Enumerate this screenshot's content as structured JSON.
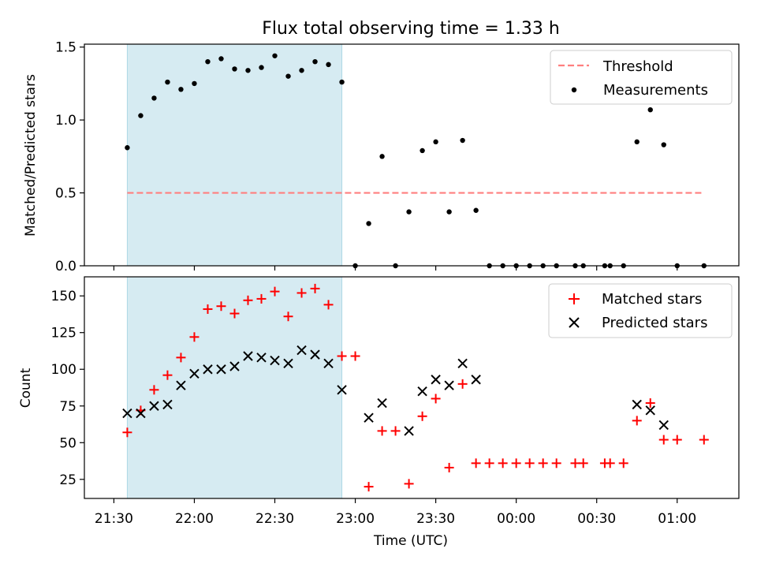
{
  "chart_data": [
    {
      "type": "scatter",
      "title": "Flux total observing time = 1.33 h",
      "xlabel": "",
      "ylabel": "Matched/Predicted stars",
      "ylim": [
        0,
        1.52
      ],
      "yticks": [
        0,
        0.5,
        1.0,
        1.5
      ],
      "ytick_labels": [
        "0.0",
        "0.5",
        "1.0",
        "1.5"
      ],
      "xlim": [
        "21:19",
        "01:23"
      ],
      "shaded_span": {
        "x_start": "21:35",
        "x_end": "22:55",
        "color": "#add8e6"
      },
      "threshold": {
        "name": "Threshold",
        "y": 0.5,
        "x_start": "21:35",
        "x_end": "01:10",
        "color": "#ff7f7f"
      },
      "legend_placement": "top-right",
      "series": [
        {
          "name": "Measurements",
          "color": "#000000",
          "marker": "dot",
          "points": [
            [
              "21:35",
              0.81
            ],
            [
              "21:40",
              1.03
            ],
            [
              "21:45",
              1.15
            ],
            [
              "21:50",
              1.26
            ],
            [
              "21:55",
              1.21
            ],
            [
              "22:00",
              1.25
            ],
            [
              "22:05",
              1.4
            ],
            [
              "22:10",
              1.42
            ],
            [
              "22:15",
              1.35
            ],
            [
              "22:20",
              1.34
            ],
            [
              "22:25",
              1.36
            ],
            [
              "22:30",
              1.44
            ],
            [
              "22:35",
              1.3
            ],
            [
              "22:40",
              1.34
            ],
            [
              "22:45",
              1.4
            ],
            [
              "22:50",
              1.38
            ],
            [
              "22:55",
              1.26
            ],
            [
              "23:00",
              0.0
            ],
            [
              "23:05",
              0.29
            ],
            [
              "23:10",
              0.75
            ],
            [
              "23:15",
              0.0
            ],
            [
              "23:20",
              0.37
            ],
            [
              "23:25",
              0.79
            ],
            [
              "23:30",
              0.85
            ],
            [
              "23:35",
              0.37
            ],
            [
              "23:40",
              0.86
            ],
            [
              "23:45",
              0.38
            ],
            [
              "23:50",
              0.0
            ],
            [
              "23:55",
              0.0
            ],
            [
              "00:00",
              0.0
            ],
            [
              "00:05",
              0.0
            ],
            [
              "00:10",
              0.0
            ],
            [
              "00:15",
              0.0
            ],
            [
              "00:22",
              0.0
            ],
            [
              "00:25",
              0.0
            ],
            [
              "00:33",
              0.0
            ],
            [
              "00:35",
              0.0
            ],
            [
              "00:40",
              0.0
            ],
            [
              "00:45",
              0.85
            ],
            [
              "00:50",
              1.07
            ],
            [
              "00:55",
              0.83
            ],
            [
              "01:00",
              0.0
            ],
            [
              "01:10",
              0.0
            ]
          ]
        }
      ]
    },
    {
      "type": "scatter",
      "title": "",
      "xlabel": "Time (UTC)",
      "ylabel": "Count",
      "ylim": [
        12,
        163
      ],
      "yticks": [
        25,
        50,
        75,
        100,
        125,
        150
      ],
      "ytick_labels": [
        "25",
        "50",
        "75",
        "100",
        "125",
        "150"
      ],
      "xticks": [
        "21:30",
        "22:00",
        "22:30",
        "23:00",
        "23:30",
        "00:00",
        "00:30",
        "01:00"
      ],
      "xlim": [
        "21:19",
        "01:23"
      ],
      "shaded_span": {
        "x_start": "21:35",
        "x_end": "22:55",
        "color": "#add8e6"
      },
      "legend_placement": "top-right",
      "series": [
        {
          "name": "Matched stars",
          "color": "#ff0000",
          "marker": "plus",
          "points": [
            [
              "21:35",
              57
            ],
            [
              "21:40",
              72
            ],
            [
              "21:45",
              86
            ],
            [
              "21:50",
              96
            ],
            [
              "21:55",
              108
            ],
            [
              "22:00",
              122
            ],
            [
              "22:05",
              141
            ],
            [
              "22:10",
              143
            ],
            [
              "22:15",
              138
            ],
            [
              "22:20",
              147
            ],
            [
              "22:25",
              148
            ],
            [
              "22:30",
              153
            ],
            [
              "22:35",
              136
            ],
            [
              "22:40",
              152
            ],
            [
              "22:45",
              155
            ],
            [
              "22:50",
              144
            ],
            [
              "22:55",
              109
            ],
            [
              "23:00",
              109
            ],
            [
              "23:05",
              20
            ],
            [
              "23:10",
              58
            ],
            [
              "23:15",
              58
            ],
            [
              "23:20",
              22
            ],
            [
              "23:25",
              68
            ],
            [
              "23:30",
              80
            ],
            [
              "23:35",
              33
            ],
            [
              "23:40",
              90
            ],
            [
              "23:45",
              36
            ],
            [
              "23:50",
              36
            ],
            [
              "23:55",
              36
            ],
            [
              "00:00",
              36
            ],
            [
              "00:05",
              36
            ],
            [
              "00:10",
              36
            ],
            [
              "00:15",
              36
            ],
            [
              "00:22",
              36
            ],
            [
              "00:25",
              36
            ],
            [
              "00:33",
              36
            ],
            [
              "00:35",
              36
            ],
            [
              "00:40",
              36
            ],
            [
              "00:45",
              65
            ],
            [
              "00:50",
              77
            ],
            [
              "00:55",
              52
            ],
            [
              "01:00",
              52
            ],
            [
              "01:10",
              52
            ]
          ]
        },
        {
          "name": "Predicted stars",
          "color": "#000000",
          "marker": "x",
          "points": [
            [
              "21:35",
              70
            ],
            [
              "21:40",
              70
            ],
            [
              "21:45",
              75
            ],
            [
              "21:50",
              76
            ],
            [
              "21:55",
              89
            ],
            [
              "22:00",
              97
            ],
            [
              "22:05",
              100
            ],
            [
              "22:10",
              100
            ],
            [
              "22:15",
              102
            ],
            [
              "22:20",
              109
            ],
            [
              "22:25",
              108
            ],
            [
              "22:30",
              106
            ],
            [
              "22:35",
              104
            ],
            [
              "22:40",
              113
            ],
            [
              "22:45",
              110
            ],
            [
              "22:50",
              104
            ],
            [
              "22:55",
              86
            ],
            [
              "23:05",
              67
            ],
            [
              "23:10",
              77
            ],
            [
              "23:20",
              58
            ],
            [
              "23:25",
              85
            ],
            [
              "23:30",
              93
            ],
            [
              "23:35",
              89
            ],
            [
              "23:40",
              104
            ],
            [
              "23:45",
              93
            ],
            [
              "00:45",
              76
            ],
            [
              "00:50",
              72
            ],
            [
              "00:55",
              62
            ]
          ]
        }
      ]
    }
  ]
}
